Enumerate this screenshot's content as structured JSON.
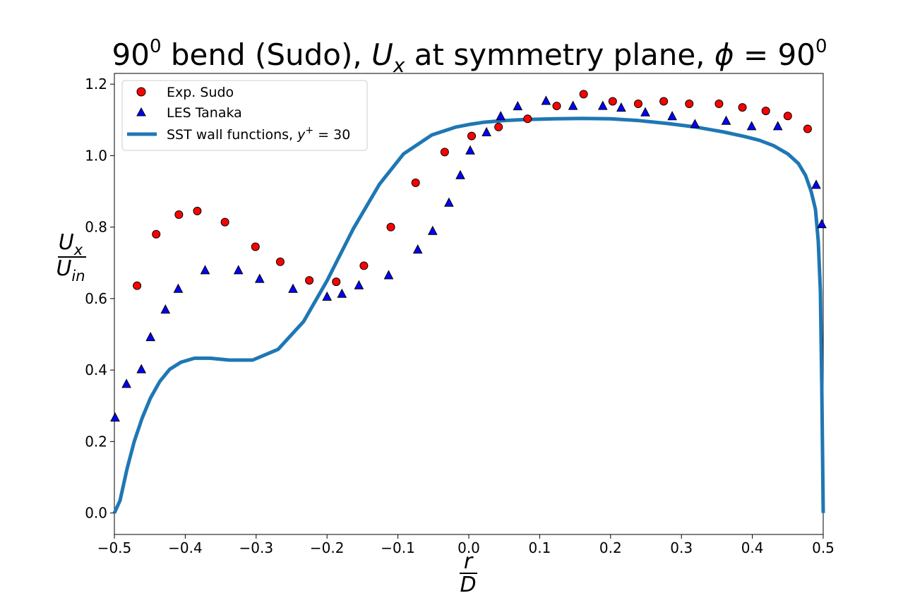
{
  "chart_data": {
    "type": "scatter",
    "title": {
      "prefix": "90",
      "prefix_sup": "0",
      "middle": " bend (Sudo), ",
      "u": "U",
      "u_sub": "x",
      "after_u": " at symmetry plane, ",
      "phi": "ϕ",
      "equals": " = 90",
      "end_sup": "0"
    },
    "xlabel": {
      "numerator": "r",
      "denominator": "D"
    },
    "ylabel": {
      "numerator": "U",
      "numerator_sub": "x",
      "denominator": "U",
      "denominator_sub": "in"
    },
    "xlim": [
      -0.5,
      0.5
    ],
    "ylim": [
      -0.06,
      1.23
    ],
    "xticks": [
      -0.5,
      -0.4,
      -0.3,
      -0.2,
      -0.1,
      0.0,
      0.1,
      0.2,
      0.3,
      0.4,
      0.5
    ],
    "xtick_labels": [
      "−0.5",
      "−0.4",
      "−0.3",
      "−0.2",
      "−0.1",
      "0.0",
      "0.1",
      "0.2",
      "0.3",
      "0.4",
      "0.5"
    ],
    "yticks": [
      0.0,
      0.2,
      0.4,
      0.6,
      0.8,
      1.0,
      1.2
    ],
    "ytick_labels": [
      "0.0",
      "0.2",
      "0.4",
      "0.6",
      "0.8",
      "1.0",
      "1.2"
    ],
    "grid": false,
    "legend_position": "top-left",
    "series": [
      {
        "name": "Exp. Sudo",
        "kind": "markers",
        "marker": "circle",
        "color": "#ff0000",
        "x": [
          -0.468,
          -0.441,
          -0.409,
          -0.383,
          -0.344,
          -0.301,
          -0.266,
          -0.225,
          -0.187,
          -0.148,
          -0.11,
          -0.075,
          -0.034,
          0.004,
          0.042,
          0.083,
          0.124,
          0.162,
          0.203,
          0.239,
          0.275,
          0.311,
          0.353,
          0.386,
          0.419,
          0.45,
          0.478
        ],
        "y": [
          0.636,
          0.78,
          0.835,
          0.845,
          0.814,
          0.745,
          0.703,
          0.651,
          0.647,
          0.692,
          0.8,
          0.924,
          1.01,
          1.055,
          1.08,
          1.103,
          1.139,
          1.172,
          1.152,
          1.145,
          1.152,
          1.145,
          1.145,
          1.135,
          1.125,
          1.111,
          1.075
        ]
      },
      {
        "name": "LES Tanaka",
        "kind": "markers",
        "marker": "triangle",
        "color": "#0000ff",
        "x": [
          -0.499,
          -0.483,
          -0.462,
          -0.449,
          -0.428,
          -0.41,
          -0.372,
          -0.325,
          -0.295,
          -0.248,
          -0.2,
          -0.179,
          -0.155,
          -0.113,
          -0.072,
          -0.051,
          -0.028,
          -0.012,
          0.002,
          0.025,
          0.045,
          0.069,
          0.109,
          0.147,
          0.189,
          0.215,
          0.249,
          0.287,
          0.319,
          0.363,
          0.399,
          0.436,
          0.49,
          0.498
        ],
        "y": [
          0.267,
          0.361,
          0.402,
          0.492,
          0.569,
          0.627,
          0.679,
          0.679,
          0.655,
          0.627,
          0.605,
          0.613,
          0.637,
          0.665,
          0.737,
          0.789,
          0.868,
          0.945,
          1.014,
          1.065,
          1.11,
          1.138,
          1.153,
          1.139,
          1.139,
          1.134,
          1.121,
          1.11,
          1.088,
          1.097,
          1.082,
          1.082,
          0.918,
          0.808
        ]
      },
      {
        "name": "SST wall functions, ",
        "name_math": "y",
        "name_math_sup": "+",
        "name_math_tail": " = 30",
        "kind": "line",
        "color": "#1f77b4",
        "x": [
          -0.5,
          -0.492,
          -0.482,
          -0.472,
          -0.461,
          -0.449,
          -0.436,
          -0.422,
          -0.406,
          -0.387,
          -0.365,
          -0.338,
          -0.305,
          -0.269,
          -0.233,
          -0.2,
          -0.163,
          -0.126,
          -0.092,
          -0.052,
          -0.018,
          0.0,
          0.02,
          0.05,
          0.08,
          0.12,
          0.16,
          0.2,
          0.24,
          0.28,
          0.32,
          0.36,
          0.39,
          0.41,
          0.43,
          0.45,
          0.465,
          0.475,
          0.483,
          0.489,
          0.493,
          0.496,
          0.498,
          0.5
        ],
        "y": [
          0.0,
          0.035,
          0.125,
          0.2,
          0.265,
          0.322,
          0.368,
          0.402,
          0.422,
          0.433,
          0.433,
          0.428,
          0.428,
          0.458,
          0.536,
          0.65,
          0.795,
          0.92,
          1.005,
          1.058,
          1.08,
          1.087,
          1.093,
          1.098,
          1.101,
          1.103,
          1.104,
          1.103,
          1.098,
          1.09,
          1.08,
          1.066,
          1.053,
          1.043,
          1.028,
          1.005,
          0.978,
          0.945,
          0.9,
          0.85,
          0.76,
          0.62,
          0.35,
          0.0
        ]
      }
    ]
  }
}
